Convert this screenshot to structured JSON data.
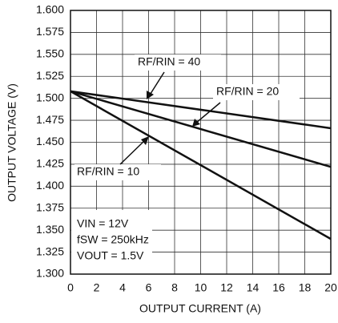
{
  "chart_data": {
    "type": "line",
    "xlabel": "OUTPUT CURRENT (A)",
    "ylabel": "OUTPUT VOLTAGE (V)",
    "x": [
      0,
      20
    ],
    "series": [
      {
        "name": "RF/RIN = 40",
        "color": "#111111",
        "values": [
          1.508,
          1.466
        ]
      },
      {
        "name": "RF/RIN = 20",
        "color": "#111111",
        "values": [
          1.508,
          1.422
        ]
      },
      {
        "name": "RF/RIN = 10",
        "color": "#111111",
        "values": [
          1.508,
          1.34
        ]
      }
    ],
    "annotations": [
      "VIN = 12V",
      "fSW = 250kHz",
      "VOUT = 1.5V"
    ],
    "xlim": [
      0,
      20
    ],
    "xticks": [
      0,
      2,
      4,
      6,
      8,
      10,
      12,
      14,
      16,
      18,
      20
    ],
    "ylim": [
      1.3,
      1.6
    ],
    "yticks": [
      {
        "value": 1.3,
        "label": "1.300"
      },
      1.325,
      {
        "value": 1.35,
        "label": "1.350"
      },
      1.375,
      {
        "value": 1.4,
        "label": "1.400"
      },
      1.425,
      {
        "value": 1.45,
        "label": "1.450"
      },
      1.475,
      {
        "value": 1.5,
        "label": "1.500"
      },
      1.525,
      {
        "value": 1.55,
        "label": "1.550"
      },
      1.575,
      {
        "value": 1.6,
        "label": "1.600"
      }
    ],
    "grid": true
  }
}
